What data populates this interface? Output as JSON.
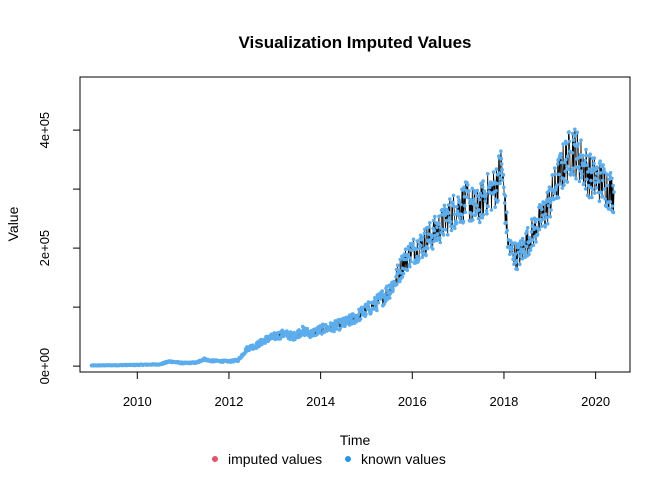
{
  "chart_data": {
    "type": "line",
    "title": "Visualization Imputed Values",
    "xlabel": "Time",
    "ylabel": "Value",
    "xlim": [
      2008.75,
      2020.75
    ],
    "ylim": [
      -10000,
      490000
    ],
    "x_ticks": [
      2010,
      2012,
      2014,
      2016,
      2018,
      2020
    ],
    "x_tick_labels": [
      "2010",
      "2012",
      "2014",
      "2016",
      "2018",
      "2020"
    ],
    "y_ticks": [
      0,
      200000,
      400000
    ],
    "y_tick_labels": [
      "0e+00",
      "2e+05",
      "4e+05"
    ],
    "grid": false,
    "legend_position": "bottom",
    "legend": [
      {
        "label": "imputed values",
        "color": "#DF536B"
      },
      {
        "label": "known values",
        "color": "#2297E6"
      }
    ],
    "series": [
      {
        "name": "known values",
        "line_color": "#000000",
        "point_color": "#5DADEC",
        "x": [
          2009.0,
          2009.5,
          2010.0,
          2010.5,
          2010.7,
          2011.0,
          2011.3,
          2011.45,
          2011.6,
          2012.0,
          2012.2,
          2012.4,
          2012.6,
          2012.8,
          2013.0,
          2013.2,
          2013.4,
          2013.6,
          2013.8,
          2014.0,
          2014.2,
          2014.4,
          2014.6,
          2014.8,
          2015.0,
          2015.2,
          2015.4,
          2015.6,
          2015.8,
          2016.0,
          2016.2,
          2016.4,
          2016.6,
          2016.8,
          2017.0,
          2017.2,
          2017.4,
          2017.6,
          2017.8,
          2017.95,
          2018.1,
          2018.3,
          2018.5,
          2018.7,
          2018.9,
          2019.1,
          2019.3,
          2019.5,
          2019.7,
          2019.9,
          2020.1,
          2020.3,
          2020.4
        ],
        "values": [
          1000,
          1500,
          2000,
          3000,
          8000,
          5000,
          6000,
          12000,
          9000,
          8000,
          10000,
          30000,
          35000,
          45000,
          50000,
          55000,
          50000,
          60000,
          55000,
          62000,
          65000,
          70000,
          75000,
          85000,
          95000,
          105000,
          120000,
          140000,
          175000,
          195000,
          205000,
          220000,
          235000,
          255000,
          270000,
          280000,
          265000,
          290000,
          300000,
          340000,
          200000,
          185000,
          210000,
          235000,
          260000,
          300000,
          340000,
          370000,
          345000,
          320000,
          315000,
          300000,
          295000
        ]
      }
    ]
  }
}
